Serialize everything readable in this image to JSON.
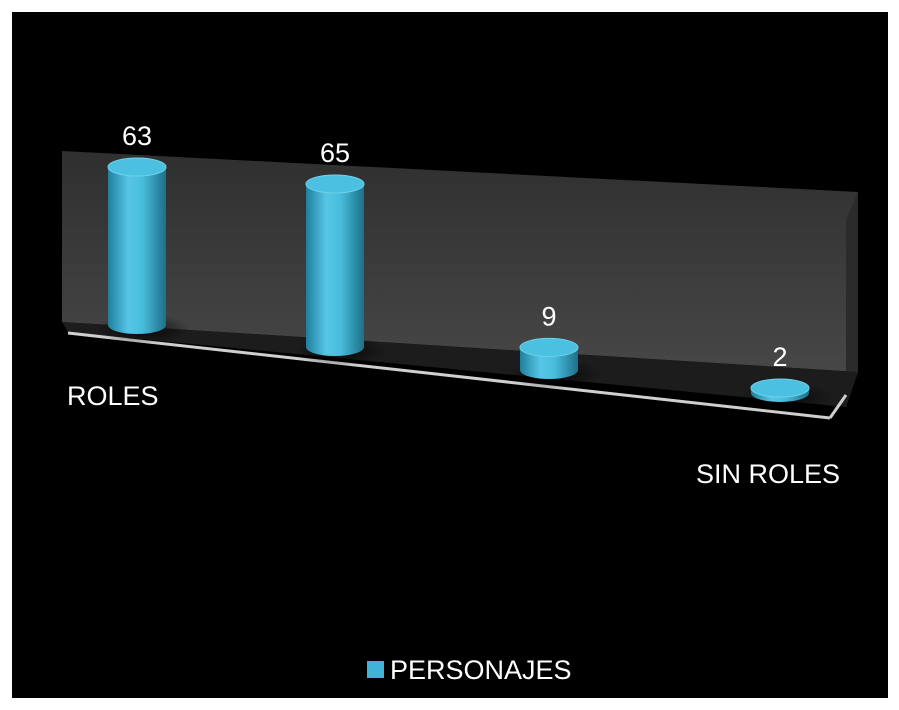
{
  "chart_data": {
    "type": "bar",
    "style": "3d-cylinder",
    "categories": [
      "ROLES",
      "",
      "",
      "SIN ROLES"
    ],
    "series": [
      {
        "name": "PERSONAJES",
        "values": [
          63,
          65,
          9,
          2
        ],
        "color": "#3fb4d6"
      }
    ],
    "ylim": [
      0,
      65
    ],
    "grid": false,
    "legend": "bottom",
    "background": "#000000",
    "wall_color": "#3a3a3a",
    "floor_color": "#1a1a1a"
  }
}
